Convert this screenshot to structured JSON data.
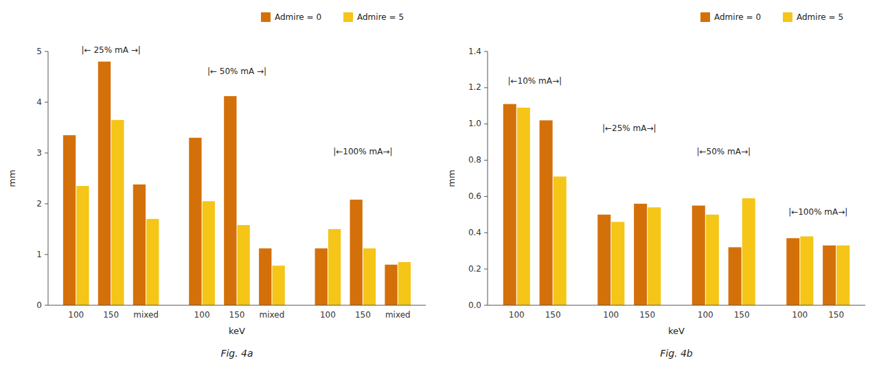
{
  "chart_data": [
    {
      "type": "bar",
      "title": "Fig. 4a",
      "xlabel": "keV",
      "ylabel": "mm",
      "categories": [
        "100",
        "150",
        "mixed",
        "100",
        "150",
        "mixed",
        "100",
        "150",
        "mixed"
      ],
      "series": [
        {
          "name": "Admire = 0",
          "color": "#D4700A",
          "values": [
            3.35,
            4.8,
            2.38,
            3.3,
            4.12,
            1.12,
            1.12,
            2.08,
            0.8
          ]
        },
        {
          "name": "Admire = 5",
          "color": "#F5C518",
          "values": [
            2.35,
            3.65,
            1.7,
            2.05,
            1.58,
            0.78,
            1.5,
            1.12,
            0.85
          ]
        }
      ],
      "annotations": [
        {
          "text": "|← 25% mA →|",
          "y": 4.93
        },
        {
          "text": "|← 50% mA →|",
          "y": 4.52
        },
        {
          "text": "|←100% mA→|",
          "y": 2.93
        }
      ],
      "ylim": [
        0,
        5
      ],
      "yticks": [
        0,
        1,
        2,
        3,
        4,
        5
      ],
      "grid": false,
      "legend": "upper right"
    },
    {
      "type": "bar",
      "title": "Fig. 4b",
      "xlabel": "keV",
      "ylabel": "mm",
      "categories": [
        "100",
        "150",
        "100",
        "150",
        "100",
        "150",
        "100",
        "150"
      ],
      "series": [
        {
          "name": "Admire = 0",
          "color": "#D4700A",
          "values": [
            1.11,
            1.02,
            0.5,
            0.56,
            0.55,
            0.32,
            0.37,
            0.33
          ]
        },
        {
          "name": "Admire = 5",
          "color": "#F5C518",
          "values": [
            1.09,
            0.71,
            0.46,
            0.54,
            0.5,
            0.59,
            0.38,
            0.33
          ]
        }
      ],
      "annotations": [
        {
          "text": "|←10% mA→|",
          "y": 1.21
        },
        {
          "text": "|←25% mA→|",
          "y": 0.95
        },
        {
          "text": "|←50% mA→|",
          "y": 0.82
        },
        {
          "text": "|←100% mA→|",
          "y": 0.49
        }
      ],
      "ylim": [
        0.0,
        1.4
      ],
      "yticks": [
        {
          "value": 0,
          "label": "0.0"
        },
        0.2,
        0.4,
        0.6,
        0.8,
        {
          "value": 1,
          "label": "1.0"
        },
        1.2,
        1.4
      ],
      "grid": false,
      "legend": "upper right"
    }
  ]
}
